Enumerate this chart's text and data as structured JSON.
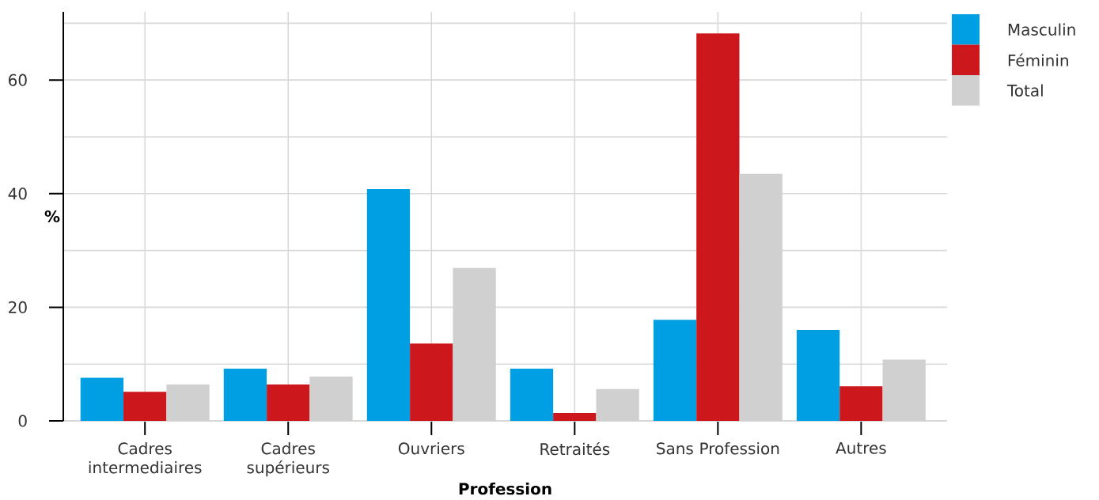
{
  "chart_data": {
    "type": "bar",
    "xlabel": "Profession",
    "ylabel": "%",
    "categories": [
      "Cadres intermediaires",
      "Cadres supérieurs",
      "Ouvriers",
      "Retraités",
      "Sans Profession",
      "Autres"
    ],
    "series": [
      {
        "name": "Masculin",
        "color": "#009fe3",
        "values": [
          7.6,
          9.2,
          40.8,
          9.2,
          17.8,
          16.0
        ]
      },
      {
        "name": "Féminin",
        "color": "#cc171d",
        "values": [
          5.1,
          6.4,
          13.6,
          1.4,
          68.2,
          6.1
        ]
      },
      {
        "name": "Total",
        "color": "#d0d0d0",
        "values": [
          6.4,
          7.8,
          26.9,
          5.6,
          43.5,
          10.8
        ]
      }
    ],
    "ylim": [
      0,
      72
    ],
    "yticks": [
      0,
      {
        "value": 10,
        "label": null
      },
      20,
      {
        "value": 30,
        "label": null
      },
      40,
      {
        "value": 50,
        "label": null
      },
      60,
      {
        "value": 70,
        "label": null
      }
    ],
    "grid": true,
    "legend": "top right"
  }
}
